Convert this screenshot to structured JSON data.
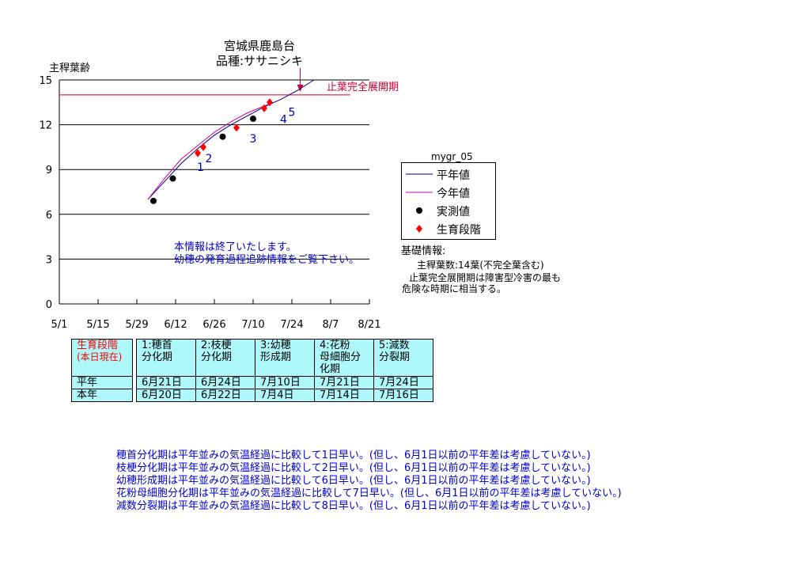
{
  "header": {
    "location": "宮城県鹿島台",
    "variety": "品種:ササニシキ"
  },
  "chart_data": {
    "type": "line",
    "ylabel": "主稈葉齢",
    "ylim": [
      0,
      15
    ],
    "yticks": [
      "0",
      "3",
      "6",
      "9",
      "12",
      "15"
    ],
    "xlim": [
      "5/1",
      "8/21"
    ],
    "xticks": [
      "5/1",
      "5/15",
      "5/29",
      "6/12",
      "6/26",
      "7/10",
      "7/24",
      "8/7",
      "8/21"
    ],
    "grid": "horizontal",
    "legend_title": "mygr_05",
    "legend_position": "right",
    "threshold": {
      "label": "止葉完全展開期",
      "value": 14,
      "color": "#cc0033"
    },
    "series": [
      {
        "name": "平年値",
        "color": "#000080",
        "kind": "line",
        "x": [
          "6/2",
          "6/8",
          "6/14",
          "6/20",
          "6/26",
          "7/2",
          "7/8",
          "7/14",
          "7/20",
          "7/26",
          "8/1"
        ],
        "y": [
          7.0,
          8.2,
          9.4,
          10.4,
          11.3,
          12.0,
          12.6,
          13.2,
          13.7,
          14.3,
          15.0
        ]
      },
      {
        "name": "今年値",
        "color": "#cc0099",
        "kind": "line",
        "x": [
          "6/2",
          "6/8",
          "6/14",
          "6/20",
          "6/26",
          "7/2",
          "7/8",
          "7/16"
        ],
        "y": [
          7.0,
          8.4,
          9.7,
          10.6,
          11.5,
          12.2,
          12.8,
          13.4
        ]
      },
      {
        "name": "実測値",
        "color": "#000000",
        "kind": "dot",
        "x": [
          "6/4",
          "6/11",
          "6/29",
          "7/10"
        ],
        "y": [
          6.9,
          8.4,
          11.2,
          12.4
        ]
      },
      {
        "name": "生育段階",
        "color": "#ff0000",
        "kind": "diamond",
        "x": [
          "6/20",
          "6/22",
          "7/4",
          "7/14",
          "7/16"
        ],
        "y": [
          10.1,
          10.5,
          11.8,
          13.1,
          13.5
        ]
      }
    ],
    "stage_labels": [
      {
        "text": "1",
        "x": "6/21",
        "y": 8.9
      },
      {
        "text": "2",
        "x": "6/24",
        "y": 9.5
      },
      {
        "text": "3",
        "x": "7/10",
        "y": 10.8
      },
      {
        "text": "4",
        "x": "7/21",
        "y": 12.1
      },
      {
        "text": "5",
        "x": "7/24",
        "y": 12.6
      }
    ],
    "arrow_at": "7/27"
  },
  "notice": {
    "line1": "本情報は終了いたします。",
    "line2": "幼穂の発育過程追跡情報をご覧下さい。"
  },
  "basic_info": {
    "heading": "基礎情報:",
    "line1": "主稈葉数:14葉(不完全葉含む)",
    "line2": "止葉完全展開期は障害型冷害の最も",
    "line3": "危険な時期に相当する。"
  },
  "stage_table": {
    "header_label_1": "生育段階",
    "header_label_2": "(本日現在)",
    "columns": [
      {
        "l1": "1:穂首",
        "l2": "分化期",
        "l3": ""
      },
      {
        "l1": "2:枝梗",
        "l2": "分化期",
        "l3": ""
      },
      {
        "l1": "3:幼穂",
        "l2": "形成期",
        "l3": ""
      },
      {
        "l1": "4:花粉",
        "l2": "母細胞分",
        "l3": "化期"
      },
      {
        "l1": "5:減数",
        "l2": "分裂期",
        "l3": ""
      }
    ],
    "rows": [
      {
        "label": "平年",
        "values": [
          "6月21日",
          "6月24日",
          "7月10日",
          "7月21日",
          "7月24日"
        ]
      },
      {
        "label": "本年",
        "values": [
          "6月20日",
          "6月22日",
          "7月4日",
          "7月14日",
          "7月16日"
        ]
      }
    ]
  },
  "notes": [
    "穂首分化期は平年並みの気温経過に比較して1日早い。(但し、6月1日以前の平年差は考慮していない。)",
    "枝梗分化期は平年並みの気温経過に比較して2日早い。(但し、6月1日以前の平年差は考慮していない。)",
    "幼穂形成期は平年並みの気温経過に比較して6日早い。(但し、6月1日以前の平年差は考慮していない。)",
    "花粉母細胞分化期は平年並みの気温経過に比較して7日早い。(但し、6月1日以前の平年差は考慮していない。)",
    "減数分裂期は平年並みの気温経過に比較して8日早い。(但し、6月1日以前の平年差は考慮していない。)"
  ]
}
